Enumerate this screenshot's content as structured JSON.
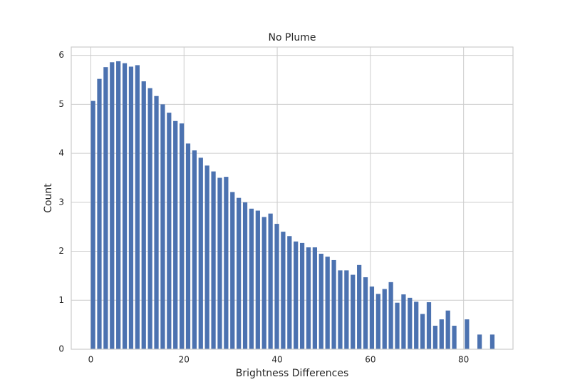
{
  "chart_data": {
    "type": "histogram",
    "title": "No Plume",
    "xlabel": "Brightness Differences",
    "ylabel": "Count",
    "bins": [
      0,
      1.36,
      2.72,
      4.08,
      5.44,
      6.8,
      8.16,
      9.52,
      10.88,
      12.24,
      13.6,
      14.96,
      16.32,
      17.68,
      19.04,
      20.4,
      21.76,
      23.12,
      24.48,
      25.84,
      27.2,
      28.56,
      29.92,
      31.28,
      32.64,
      34,
      35.36,
      36.72,
      38.08,
      39.44,
      40.8,
      42.16,
      43.52,
      44.88,
      46.24,
      47.6,
      48.96,
      50.32,
      51.68,
      53.04,
      54.4,
      55.76,
      57.12,
      58.48,
      59.84,
      61.2,
      62.56,
      63.92,
      65.28,
      66.64,
      68,
      69.36,
      70.72,
      72.08,
      73.44,
      74.8,
      76.16,
      77.52,
      78.88,
      80.24,
      81.6,
      82.96,
      84.32,
      85.68,
      87.04
    ],
    "values": [
      5.07,
      5.52,
      5.76,
      5.86,
      5.88,
      5.84,
      5.77,
      5.8,
      5.47,
      5.33,
      5.17,
      5.0,
      4.83,
      4.66,
      4.61,
      4.2,
      4.06,
      3.91,
      3.75,
      3.63,
      3.5,
      3.52,
      3.21,
      3.09,
      3.0,
      2.87,
      2.83,
      2.7,
      2.77,
      2.56,
      2.4,
      2.31,
      2.2,
      2.17,
      2.08,
      2.08,
      1.95,
      1.89,
      1.82,
      1.61,
      1.61,
      1.52,
      1.72,
      1.47,
      1.28,
      1.13,
      1.23,
      1.37,
      0.95,
      1.12,
      1.05,
      0.97,
      0.72,
      0.96,
      0.48,
      0.61,
      0.79,
      0.48,
      0,
      0.61,
      0,
      0.3,
      0,
      0.3
    ],
    "color": "#4c72b0",
    "xlim": [
      -4.2,
      90.6
    ],
    "xticks": [
      0,
      20,
      40,
      60,
      80
    ],
    "ylim": [
      0,
      6.17
    ],
    "yticks": [
      0,
      1,
      2,
      3,
      4,
      5,
      6
    ],
    "grid": true
  }
}
